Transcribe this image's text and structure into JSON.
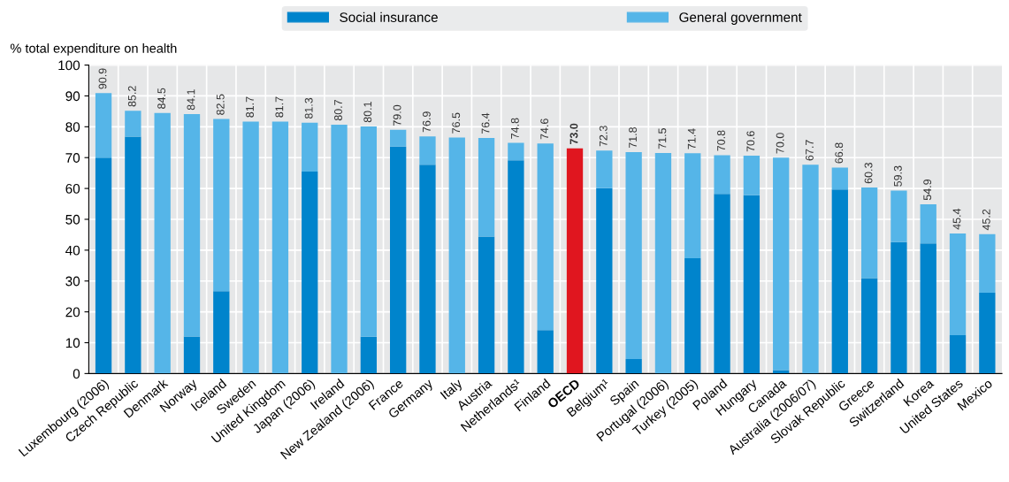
{
  "chart_data": {
    "type": "bar",
    "stacked": true,
    "ylabel": "% total expenditure on health",
    "categories": [
      "Luxembourg (2006)",
      "Czech Republic",
      "Denmark",
      "Norway",
      "Iceland",
      "Sweden",
      "United Kingdom",
      "Japan (2006)",
      "Ireland",
      "New Zealand (2006)",
      "France",
      "Germany",
      "Italy",
      "Austria",
      "Netherlands¹",
      "Finland",
      "OECD",
      "Belgium¹",
      "Spain",
      "Portugal (2006)",
      "Turkey (2005)",
      "Poland",
      "Hungary",
      "Canada",
      "Australia (2006/07)",
      "Slovak Republic",
      "Greece",
      "Switzerland",
      "Korea",
      "United States",
      "Mexico"
    ],
    "series": [
      {
        "name": "Social insurance",
        "color": "#0084cc",
        "values": [
          70.0,
          76.8,
          0,
          12.0,
          26.7,
          0,
          0,
          65.5,
          0,
          11.9,
          73.6,
          67.7,
          0,
          44.4,
          69.1,
          14.1,
          null,
          60.1,
          4.7,
          0,
          37.4,
          58.2,
          57.8,
          1.1,
          0,
          59.7,
          30.9,
          42.6,
          42.2,
          12.4,
          26.2
        ]
      },
      {
        "name": "General government",
        "color": "#55b5e8",
        "values": [
          20.9,
          8.4,
          84.5,
          72.1,
          55.8,
          81.7,
          81.7,
          15.8,
          80.7,
          68.2,
          5.4,
          9.2,
          76.5,
          32.0,
          5.7,
          60.5,
          null,
          12.2,
          67.1,
          71.5,
          34.0,
          12.6,
          12.8,
          68.9,
          67.7,
          7.1,
          29.4,
          16.7,
          12.7,
          33.0,
          19.0
        ]
      },
      {
        "color": "#e0161f",
        "values": [
          null,
          null,
          null,
          null,
          null,
          null,
          null,
          null,
          null,
          null,
          null,
          null,
          null,
          null,
          null,
          null,
          73.0,
          null,
          null,
          null,
          null,
          null,
          null,
          null,
          null,
          null,
          null,
          null,
          null,
          null,
          null
        ]
      }
    ],
    "totals": [
      "90.9",
      "85.2",
      "84.5",
      "84.1",
      "82.5",
      "81.7",
      "81.7",
      "81.3",
      "80.7",
      "80.1",
      "79.0",
      "76.9",
      "76.5",
      "76.4",
      "74.8",
      "74.6",
      "73.0",
      "72.3",
      "71.8",
      "71.5",
      "71.4",
      "70.8",
      "70.6",
      "70.0",
      "67.7",
      "66.8",
      "60.3",
      "59.3",
      "54.9",
      "45.4",
      "45.2"
    ],
    "ylim": [
      0,
      100
    ],
    "yticks": [
      0,
      10,
      20,
      30,
      40,
      50,
      60,
      70,
      80,
      90,
      100
    ],
    "grid": "y",
    "legend": "top"
  }
}
